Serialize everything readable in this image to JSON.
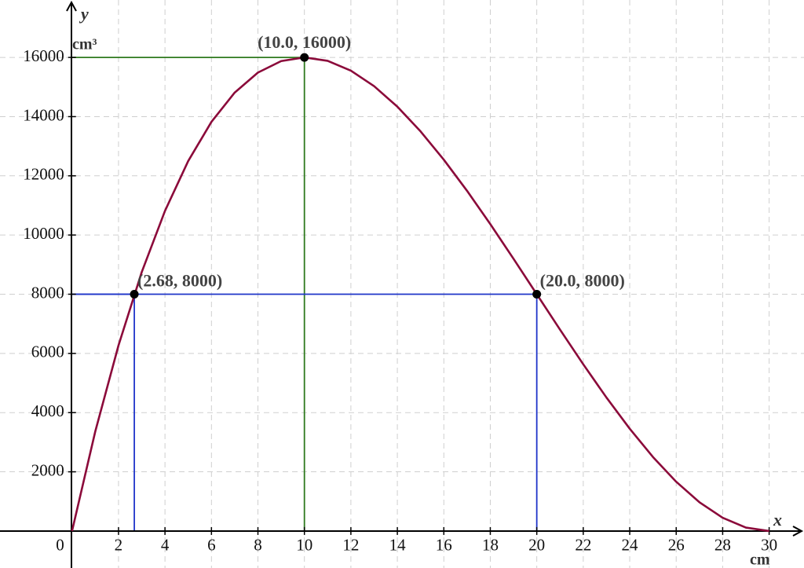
{
  "chart_data": {
    "type": "line",
    "x_label": "x",
    "y_label": "y",
    "x_unit": "cm",
    "y_unit": "cm³",
    "x": [
      0,
      1,
      2,
      3,
      4,
      5,
      6,
      7,
      8,
      9,
      10,
      11,
      12,
      13,
      14,
      15,
      16,
      17,
      18,
      19,
      20,
      21,
      22,
      23,
      24,
      25,
      26,
      27,
      28,
      29,
      30
    ],
    "series": [
      {
        "color": "#8b0a3a",
        "values": [
          0,
          3364,
          6272,
          8748,
          10816,
          12500,
          13824,
          14812,
          15488,
          15876,
          16000,
          15884,
          15552,
          15028,
          14336,
          13500,
          12544,
          11492,
          10368,
          9196,
          8000,
          6804,
          5632,
          4508,
          3456,
          2500,
          1664,
          972,
          448,
          116,
          0
        ]
      }
    ],
    "points": [
      {
        "x": 2.68,
        "y": 8000,
        "label": "(2.68, 8000)",
        "guide_color": "#1f35c9"
      },
      {
        "x": 10.0,
        "y": 16000,
        "label": "(10.0, 16000)",
        "guide_color": "#2f7a1e"
      },
      {
        "x": 20.0,
        "y": 8000,
        "label": "(20.0, 8000)",
        "guide_color": "#1f35c9"
      }
    ],
    "xlim": [
      -3.1,
      31.5
    ],
    "ylim": [
      -1250,
      17940
    ],
    "xticks": [
      0,
      2,
      4,
      6,
      8,
      10,
      12,
      14,
      16,
      18,
      20,
      22,
      24,
      26,
      28,
      30
    ],
    "yticks": [
      2000,
      4000,
      6000,
      8000,
      10000,
      12000,
      14000,
      16000
    ],
    "grid": true
  }
}
